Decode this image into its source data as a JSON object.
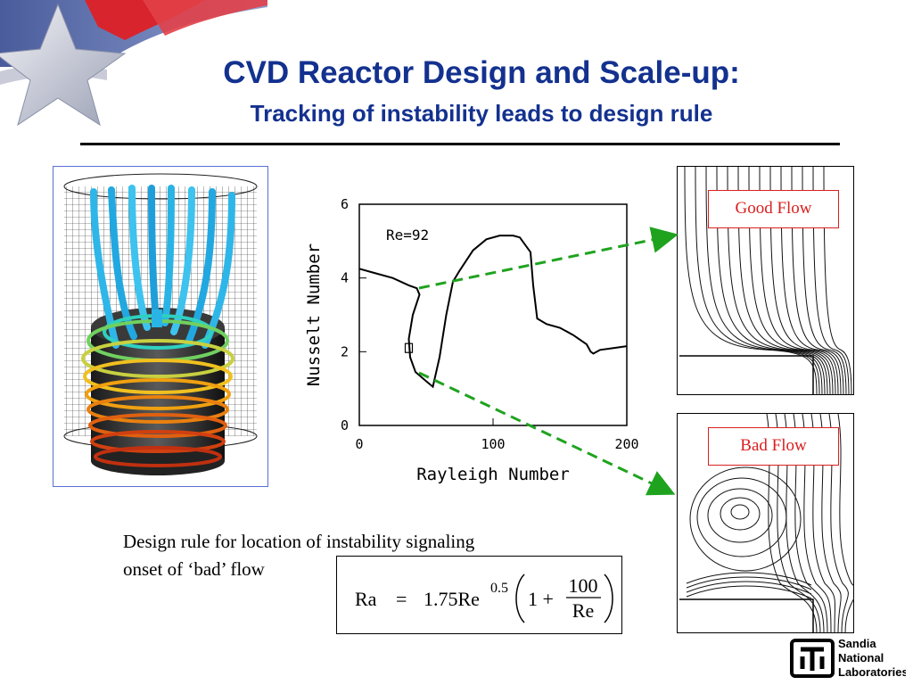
{
  "slide": {
    "title": "CVD Reactor Design and Scale-up:",
    "subtitle": "Tracking of instability leads to design rule"
  },
  "flow_labels": {
    "good": "Good Flow",
    "bad": "Bad Flow"
  },
  "description": {
    "line1": "Design rule for location of instability signaling",
    "line2": "onset of ‘bad’ flow"
  },
  "equation": {
    "lhs": "Ra",
    "equals": "=",
    "coefficient": "1.75Re",
    "exponent": "0.5",
    "one_plus": "1 +",
    "numerator": "100",
    "denominator": "Re"
  },
  "logo": {
    "line1": "Sandia",
    "line2": "National",
    "line3": "Laboratories"
  },
  "colors": {
    "title": "#13318f",
    "flow_label": "#d92020",
    "arrow": "#1fa31f"
  },
  "chart_data": {
    "type": "line",
    "title": "",
    "annotation": "Re=92",
    "xlabel": "Rayleigh Number",
    "ylabel": "Nusselt Number",
    "xlim": [
      0,
      200
    ],
    "ylim": [
      0,
      6
    ],
    "xticks": [
      0,
      100,
      200
    ],
    "yticks": [
      0,
      2,
      4,
      6
    ],
    "series": [
      {
        "x": [
          0,
          10,
          25,
          37,
          43,
          45,
          40,
          37,
          38,
          42,
          50,
          55,
          60,
          65,
          70,
          75,
          85,
          95,
          105,
          115,
          120,
          128,
          130,
          133,
          140,
          150,
          160,
          170,
          173,
          175,
          180,
          190,
          200
        ],
        "y": [
          4.25,
          4.15,
          4.0,
          3.8,
          3.72,
          3.55,
          3.0,
          2.35,
          1.85,
          1.45,
          1.2,
          1.05,
          1.85,
          3.0,
          3.9,
          4.2,
          4.75,
          5.05,
          5.15,
          5.15,
          5.1,
          4.7,
          3.8,
          2.9,
          2.75,
          2.65,
          2.45,
          2.2,
          2.0,
          1.95,
          2.05,
          2.1,
          2.15
        ]
      }
    ],
    "marker": {
      "x": 37,
      "y": 2.1
    }
  }
}
